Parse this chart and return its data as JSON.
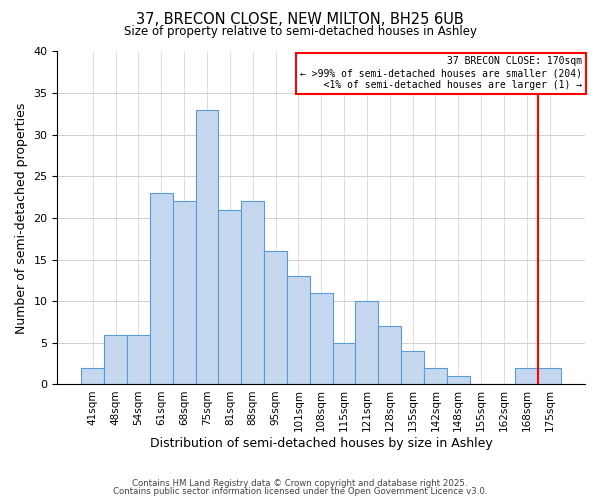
{
  "title": "37, BRECON CLOSE, NEW MILTON, BH25 6UB",
  "subtitle": "Size of property relative to semi-detached houses in Ashley",
  "xlabel": "Distribution of semi-detached houses by size in Ashley",
  "ylabel": "Number of semi-detached properties",
  "bar_labels": [
    "41sqm",
    "48sqm",
    "54sqm",
    "61sqm",
    "68sqm",
    "75sqm",
    "81sqm",
    "88sqm",
    "95sqm",
    "101sqm",
    "108sqm",
    "115sqm",
    "121sqm",
    "128sqm",
    "135sqm",
    "142sqm",
    "148sqm",
    "155sqm",
    "162sqm",
    "168sqm",
    "175sqm"
  ],
  "bar_values": [
    2,
    6,
    6,
    23,
    22,
    33,
    21,
    22,
    16,
    13,
    11,
    5,
    10,
    7,
    4,
    2,
    1,
    0,
    0,
    2,
    2
  ],
  "bar_color": "#c5d8f0",
  "bar_edge_color": "#5b9bd5",
  "ylim": [
    0,
    40
  ],
  "yticks": [
    0,
    5,
    10,
    15,
    20,
    25,
    30,
    35,
    40
  ],
  "marker_color": "red",
  "legend_title": "37 BRECON CLOSE: 170sqm",
  "legend_line1": "← >99% of semi-detached houses are smaller (204)",
  "legend_line2": "   <1% of semi-detached houses are larger (1) →",
  "footer_line1": "Contains HM Land Registry data © Crown copyright and database right 2025.",
  "footer_line2": "Contains public sector information licensed under the Open Government Licence v3.0.",
  "background_color": "#ffffff",
  "grid_color": "#d0d0d0"
}
